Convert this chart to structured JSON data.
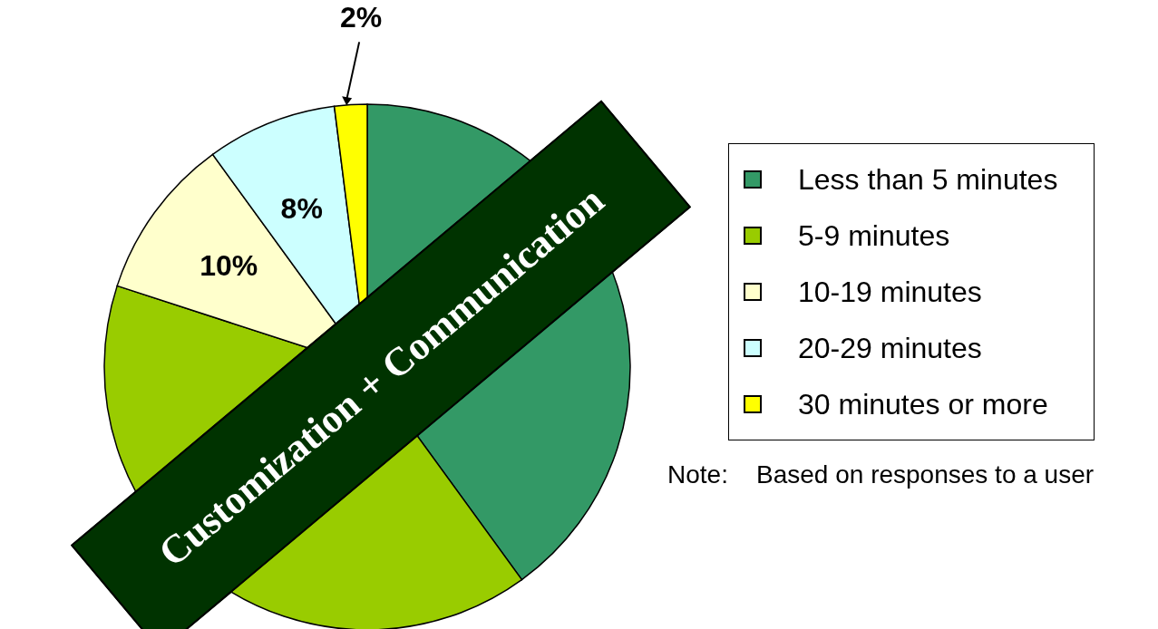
{
  "chart_data": {
    "type": "pie",
    "categories": [
      "Less than 5 minutes",
      "5-9 minutes",
      "10-19 minutes",
      "20-29 minutes",
      "30 minutes or more"
    ],
    "values": [
      40,
      40,
      10,
      8,
      2
    ],
    "colors": [
      "#339966",
      "#99cc00",
      "#ffffcc",
      "#ccffff",
      "#ffff00"
    ],
    "value_labels": [
      null,
      null,
      "10%",
      "8%",
      "2%"
    ],
    "legend": "right",
    "annotations": [
      "Customization + Communication",
      "Note:    Based on responses to a user"
    ]
  }
}
